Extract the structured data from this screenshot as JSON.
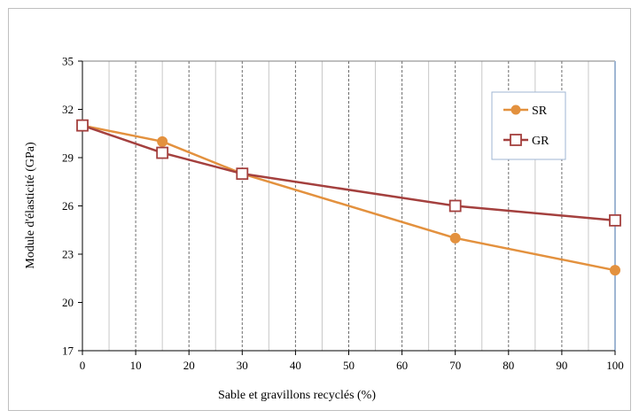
{
  "chart_data": {
    "type": "line",
    "xlabel": "Sable et gravillons recyclés (%)",
    "ylabel": "Module d'élasticité (GPa)",
    "xlim": [
      0,
      100
    ],
    "ylim": [
      17,
      35
    ],
    "xticks": [
      0,
      10,
      20,
      30,
      40,
      50,
      60,
      70,
      80,
      90,
      100
    ],
    "yticks": [
      17,
      20,
      23,
      26,
      29,
      32,
      35
    ],
    "grid": "vertical",
    "legend_position": "top-right",
    "series": [
      {
        "name": "SR",
        "color": "#e3913e",
        "marker": "circle",
        "x": [
          0,
          15,
          30,
          70,
          100
        ],
        "y": [
          31,
          30,
          28,
          24,
          22
        ]
      },
      {
        "name": "GR",
        "color": "#a4403e",
        "marker": "square",
        "x": [
          0,
          15,
          30,
          70,
          100
        ],
        "y": [
          31,
          29.3,
          28,
          26,
          25.1
        ]
      }
    ]
  }
}
